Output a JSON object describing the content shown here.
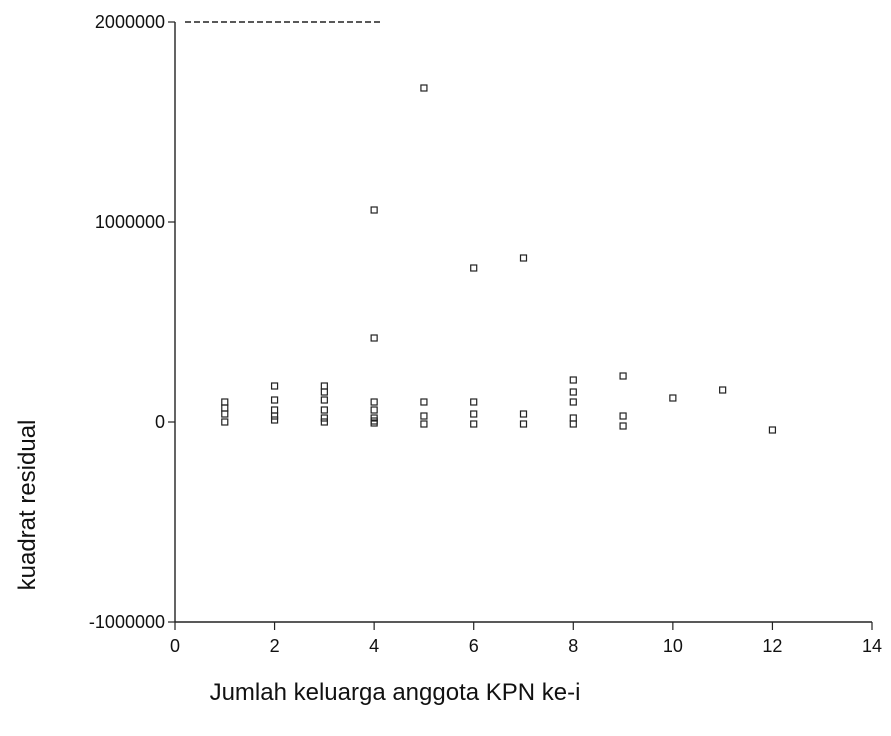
{
  "chart_data": {
    "type": "scatter",
    "title": "",
    "xlabel": "Jumlah keluarga anggota KPN ke-i",
    "ylabel": "kuadrat residual",
    "xlim": [
      0,
      14
    ],
    "ylim": [
      -1000000,
      2000000
    ],
    "x_ticks": [
      0,
      2,
      4,
      6,
      8,
      10,
      12,
      14
    ],
    "x_tick_labels": [
      "0",
      "2",
      "4",
      "6",
      "8",
      "10",
      "12",
      "14"
    ],
    "y_ticks": [
      -1000000,
      0,
      1000000,
      2000000
    ],
    "y_tick_labels": [
      "-1000000",
      "0",
      "1000000",
      "2000000"
    ],
    "grid": false,
    "legend": "none",
    "marker": "hollow-square",
    "color": "#222222",
    "points": [
      {
        "x": 1,
        "y": 100000
      },
      {
        "x": 1,
        "y": 70000
      },
      {
        "x": 1,
        "y": 40000
      },
      {
        "x": 1,
        "y": 0
      },
      {
        "x": 2,
        "y": 180000
      },
      {
        "x": 2,
        "y": 110000
      },
      {
        "x": 2,
        "y": 60000
      },
      {
        "x": 2,
        "y": 30000
      },
      {
        "x": 2,
        "y": 10000
      },
      {
        "x": 3,
        "y": 180000
      },
      {
        "x": 3,
        "y": 150000
      },
      {
        "x": 3,
        "y": 110000
      },
      {
        "x": 3,
        "y": 60000
      },
      {
        "x": 3,
        "y": 20000
      },
      {
        "x": 3,
        "y": 0
      },
      {
        "x": 4,
        "y": 1060000
      },
      {
        "x": 4,
        "y": 420000
      },
      {
        "x": 4,
        "y": 100000
      },
      {
        "x": 4,
        "y": 60000
      },
      {
        "x": 4,
        "y": 20000
      },
      {
        "x": 4,
        "y": 5000
      },
      {
        "x": 4,
        "y": -5000
      },
      {
        "x": 5,
        "y": 1670000
      },
      {
        "x": 5,
        "y": 100000
      },
      {
        "x": 5,
        "y": 30000
      },
      {
        "x": 5,
        "y": -10000
      },
      {
        "x": 6,
        "y": 770000
      },
      {
        "x": 6,
        "y": 100000
      },
      {
        "x": 6,
        "y": 40000
      },
      {
        "x": 6,
        "y": -10000
      },
      {
        "x": 7,
        "y": 820000
      },
      {
        "x": 7,
        "y": 40000
      },
      {
        "x": 7,
        "y": -10000
      },
      {
        "x": 8,
        "y": 210000
      },
      {
        "x": 8,
        "y": 150000
      },
      {
        "x": 8,
        "y": 100000
      },
      {
        "x": 8,
        "y": 20000
      },
      {
        "x": 8,
        "y": -10000
      },
      {
        "x": 9,
        "y": 230000
      },
      {
        "x": 9,
        "y": 30000
      },
      {
        "x": 9,
        "y": -20000
      },
      {
        "x": 10,
        "y": 120000
      },
      {
        "x": 11,
        "y": 160000
      },
      {
        "x": 12,
        "y": -40000
      }
    ]
  }
}
